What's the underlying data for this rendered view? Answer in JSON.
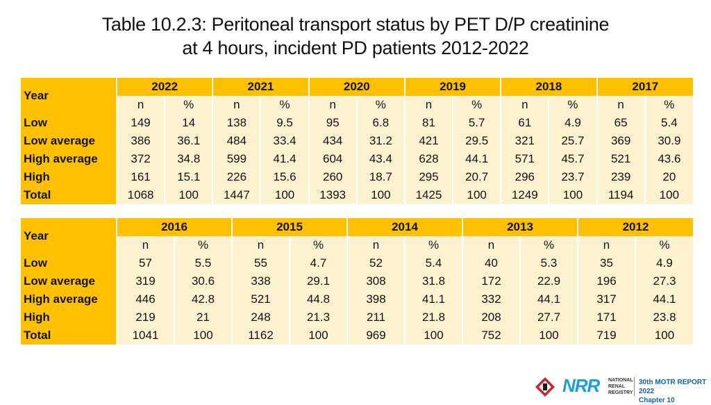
{
  "title": {
    "line1": "Table 10.2.3: Peritoneal transport status by PET D/P creatinine",
    "line2": "at 4 hours, incident PD patients 2012-2022"
  },
  "table1": {
    "year_label": "Year",
    "years": [
      "2022",
      "2021",
      "2020",
      "2019",
      "2018",
      "2017"
    ],
    "sub_headers": [
      "n",
      "%"
    ],
    "rows": [
      {
        "label": "Low",
        "values": [
          "149",
          "14",
          "138",
          "9.5",
          "95",
          "6.8",
          "81",
          "5.7",
          "61",
          "4.9",
          "65",
          "5.4"
        ]
      },
      {
        "label": "Low average",
        "values": [
          "386",
          "36.1",
          "484",
          "33.4",
          "434",
          "31.2",
          "421",
          "29.5",
          "321",
          "25.7",
          "369",
          "30.9"
        ]
      },
      {
        "label": "High average",
        "values": [
          "372",
          "34.8",
          "599",
          "41.4",
          "604",
          "43.4",
          "628",
          "44.1",
          "571",
          "45.7",
          "521",
          "43.6"
        ]
      },
      {
        "label": "High",
        "values": [
          "161",
          "15.1",
          "226",
          "15.6",
          "260",
          "18.7",
          "295",
          "20.7",
          "296",
          "23.7",
          "239",
          "20"
        ]
      },
      {
        "label": "Total",
        "values": [
          "1068",
          "100",
          "1447",
          "100",
          "1393",
          "100",
          "1425",
          "100",
          "1249",
          "100",
          "1194",
          "100"
        ]
      }
    ]
  },
  "table2": {
    "year_label": "Year",
    "years": [
      "2016",
      "2015",
      "2014",
      "2013",
      "2012"
    ],
    "sub_headers": [
      "n",
      "%"
    ],
    "rows": [
      {
        "label": "Low",
        "values": [
          "57",
          "5.5",
          "55",
          "4.7",
          "52",
          "5.4",
          "40",
          "5.3",
          "35",
          "4.9"
        ]
      },
      {
        "label": "Low average",
        "values": [
          "319",
          "30.6",
          "338",
          "29.1",
          "308",
          "31.8",
          "172",
          "22.9",
          "196",
          "27.3"
        ]
      },
      {
        "label": "High average",
        "values": [
          "446",
          "42.8",
          "521",
          "44.8",
          "398",
          "41.1",
          "332",
          "44.1",
          "317",
          "44.1"
        ]
      },
      {
        "label": "High",
        "values": [
          "219",
          "21",
          "248",
          "21.3",
          "211",
          "21.8",
          "208",
          "27.7",
          "171",
          "23.8"
        ]
      },
      {
        "label": "Total",
        "values": [
          "1041",
          "100",
          "1162",
          "100",
          "969",
          "100",
          "752",
          "100",
          "719",
          "100"
        ]
      }
    ]
  },
  "footer": {
    "logo_text": "NRR",
    "registry_name": [
      "NATIONAL",
      "RENAL",
      "REGISTRY"
    ],
    "report_title": "30th MOTR REPORT 2022",
    "chapter": "Chapter 10"
  },
  "colors": {
    "header_fill": "#ffc000",
    "body_fill": "#fdf2d0",
    "logo_blue": "#1aa0d8",
    "report_blue": "#1a5f9e"
  }
}
